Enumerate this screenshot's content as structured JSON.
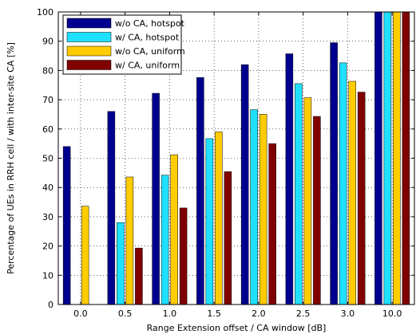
{
  "chart_data": {
    "type": "bar",
    "title": "",
    "xlabel": "Range Extension offset / CA window [dB]",
    "ylabel": "Percentage of UEs in RRH cell / with inter-site CA [%]",
    "categories": [
      "0.0",
      "0.5",
      "1.0",
      "1.5",
      "2.0",
      "2.5",
      "3.0",
      "10.0"
    ],
    "ylim": [
      0,
      100
    ],
    "yticks": [
      0,
      10,
      20,
      30,
      40,
      50,
      60,
      70,
      80,
      90,
      100
    ],
    "grid": true,
    "legend_position": "top-left",
    "series": [
      {
        "name": "w/o CA, hotspot",
        "color": "#00008f",
        "values": [
          54,
          66,
          72.2,
          77.6,
          82,
          85.7,
          89.5,
          100
        ]
      },
      {
        "name": "w/ CA, hotspot",
        "color": "#1fe1ff",
        "values": [
          null,
          28,
          44.2,
          56.7,
          66.6,
          75.5,
          82.6,
          100
        ]
      },
      {
        "name": "w/o CA, uniform",
        "color": "#ffcc00",
        "values": [
          33.6,
          43.6,
          51.2,
          59,
          65,
          70.7,
          76.3,
          100
        ]
      },
      {
        "name": "w/ CA, uniform",
        "color": "#800000",
        "values": [
          null,
          19.3,
          33,
          45.4,
          55,
          64.3,
          72.6,
          100
        ]
      }
    ]
  }
}
